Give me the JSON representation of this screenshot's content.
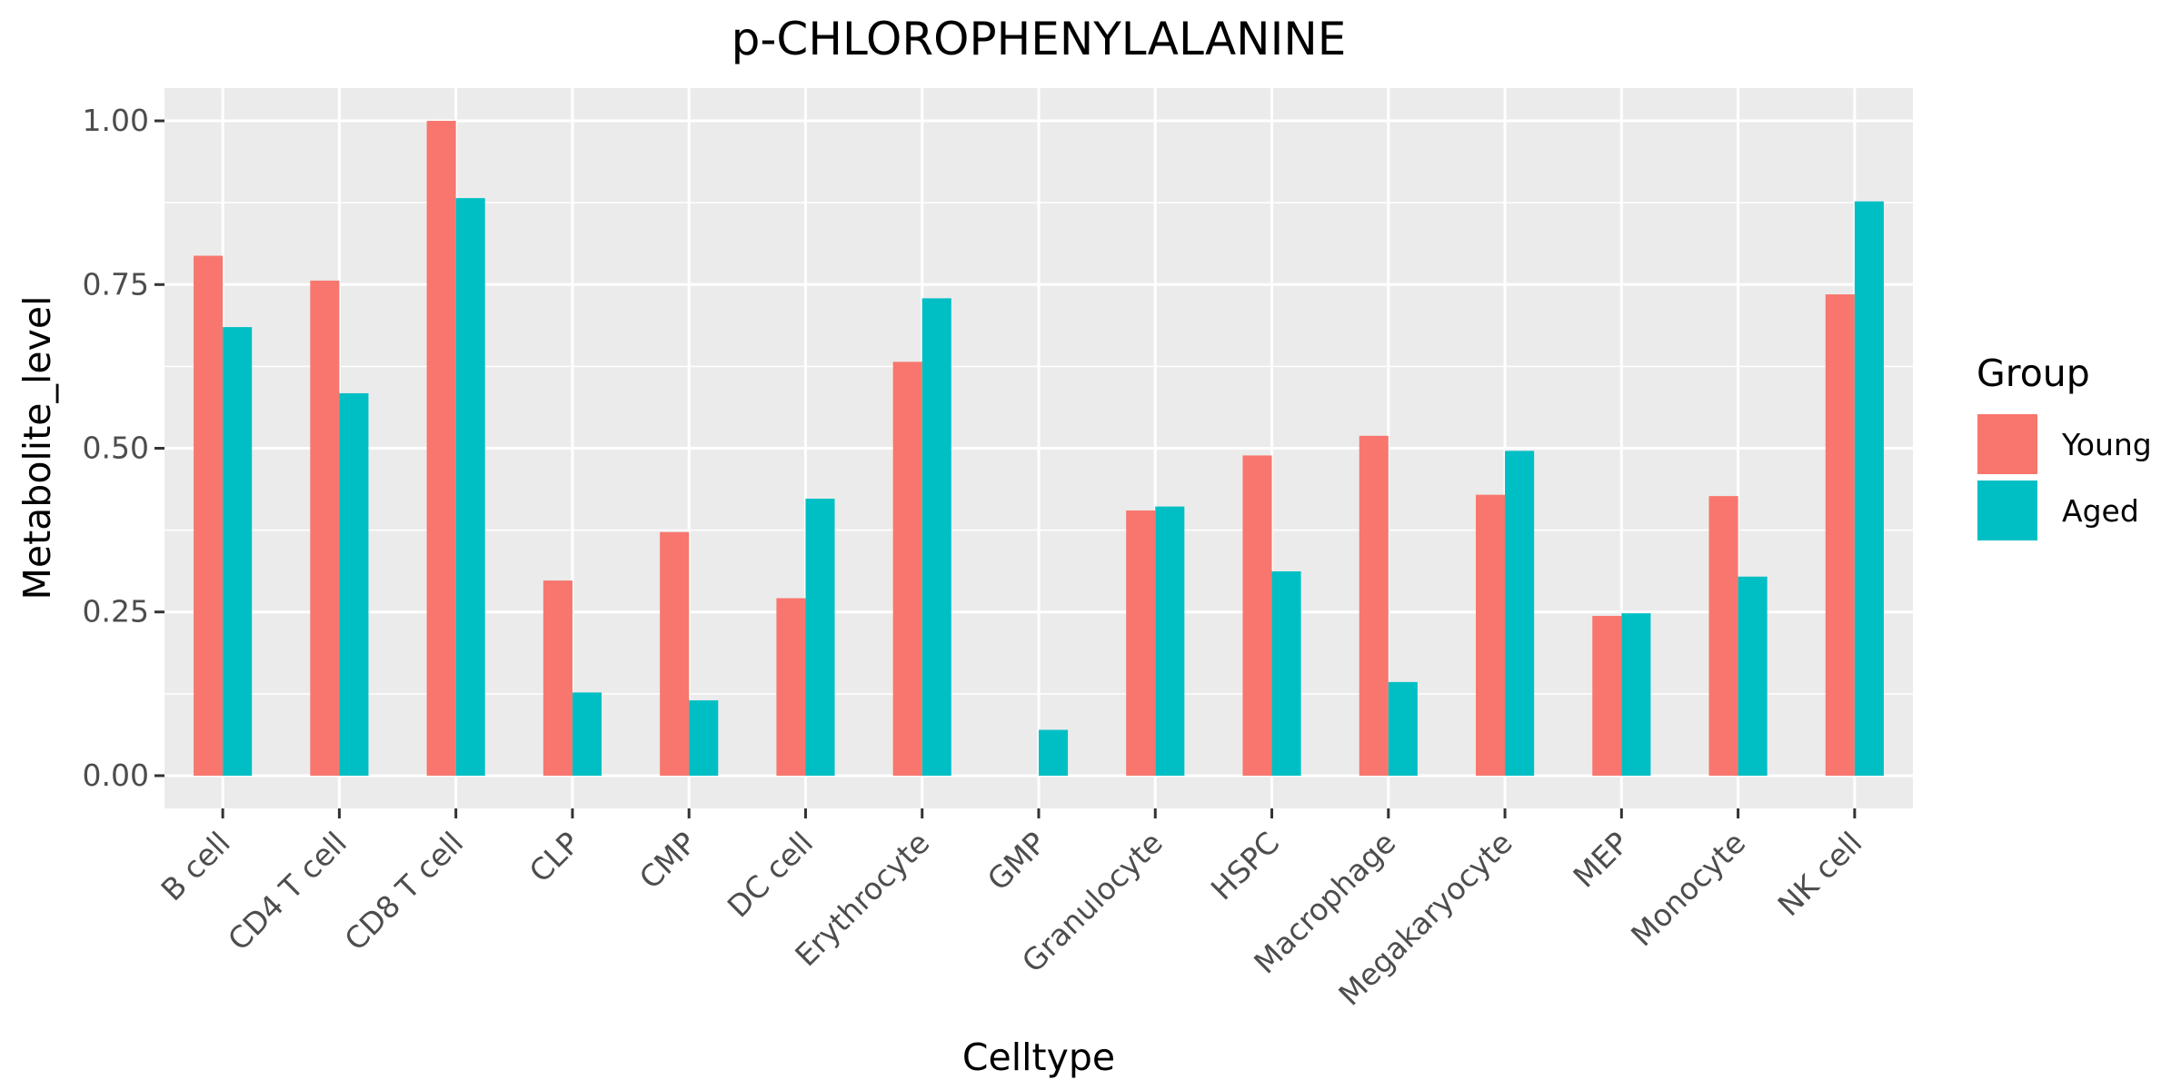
{
  "chart_data": {
    "type": "bar",
    "title": "p-CHLOROPHENYLALANINE",
    "xlabel": "Celltype",
    "ylabel": "Metabolite_level",
    "ylim": [
      -0.05,
      1.05
    ],
    "yticks": [
      0.0,
      0.25,
      0.5,
      0.75,
      1.0
    ],
    "ytick_labels": [
      "0.00",
      "0.25",
      "0.50",
      "0.75",
      "1.00"
    ],
    "grid": true,
    "legend_position": "right",
    "legend_title": "Group",
    "categories": [
      "B cell",
      "CD4 T cell",
      "CD8 T cell",
      "CLP",
      "CMP",
      "DC cell",
      "Erythrocyte",
      "GMP",
      "Granulocyte",
      "HSPC",
      "Macrophage",
      "Megakaryocyte",
      "MEP",
      "Monocyte",
      "NK cell"
    ],
    "series": [
      {
        "name": "Young",
        "color": "#F8766D",
        "values": [
          0.794,
          0.756,
          1.0,
          0.298,
          0.372,
          0.271,
          0.632,
          0.0,
          0.405,
          0.489,
          0.519,
          0.429,
          0.244,
          0.427,
          0.735
        ]
      },
      {
        "name": "Aged",
        "color": "#00BFC4",
        "values": [
          0.685,
          0.584,
          0.882,
          0.127,
          0.115,
          0.423,
          0.729,
          0.07,
          0.411,
          0.312,
          0.143,
          0.496,
          0.248,
          0.304,
          0.877
        ]
      }
    ]
  }
}
